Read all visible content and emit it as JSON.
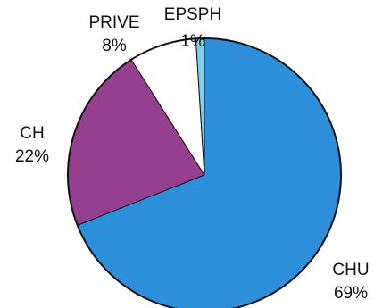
{
  "chart_data": {
    "type": "pie",
    "start_angle_deg": 0,
    "direction": "clockwise",
    "legend": "none",
    "slices": [
      {
        "label": "CHU",
        "value": 69,
        "value_label": "69%",
        "color": "#2d8fda"
      },
      {
        "label": "CH",
        "value": 22,
        "value_label": "22%",
        "color": "#95408f"
      },
      {
        "label": "PRIVE",
        "value": 8,
        "value_label": "8%",
        "color": "#ffffff"
      },
      {
        "label": "EPSPH",
        "value": 1,
        "value_label": "1%",
        "color": "#7fd0e8"
      }
    ]
  }
}
